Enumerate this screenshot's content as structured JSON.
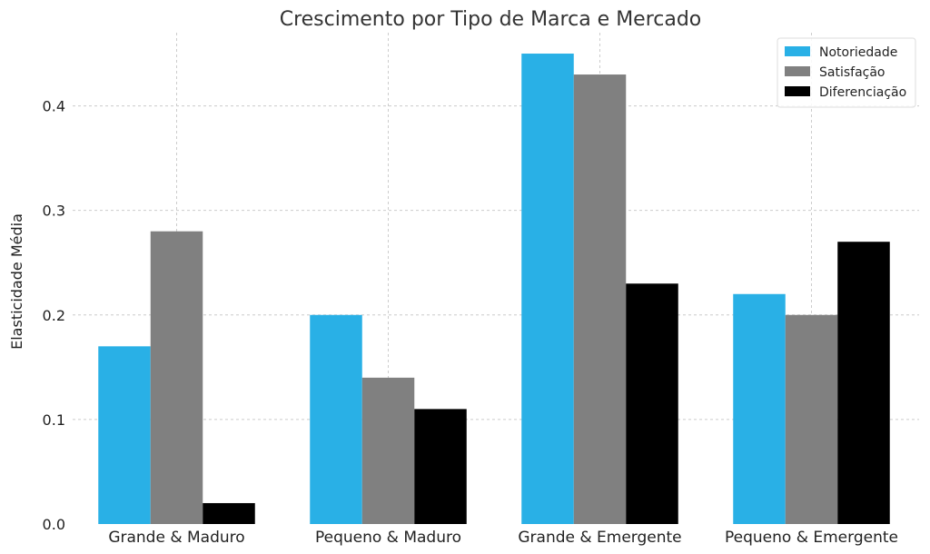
{
  "chart_data": {
    "type": "bar",
    "title": "Crescimento por Tipo de Marca e Mercado",
    "xlabel": "",
    "ylabel": "Elasticidade Média",
    "ylim": [
      0,
      0.47
    ],
    "yticks": [
      0.0,
      0.1,
      0.2,
      0.3,
      0.4
    ],
    "ytick_labels": [
      "0.0",
      "0.1",
      "0.2",
      "0.3",
      "0.4"
    ],
    "categories": [
      "Grande & Maduro",
      "Pequeno & Maduro",
      "Grande & Emergente",
      "Pequeno & Emergente"
    ],
    "series": [
      {
        "name": "Notoriedade",
        "color": "#29b0e6",
        "values": [
          0.17,
          0.2,
          0.45,
          0.22
        ]
      },
      {
        "name": "Satisfação",
        "color": "#808080",
        "values": [
          0.28,
          0.14,
          0.43,
          0.2
        ]
      },
      {
        "name": "Diferenciação",
        "color": "#000000",
        "values": [
          0.02,
          0.11,
          0.23,
          0.27
        ]
      }
    ],
    "grid": true,
    "legend_position": "top-right"
  }
}
